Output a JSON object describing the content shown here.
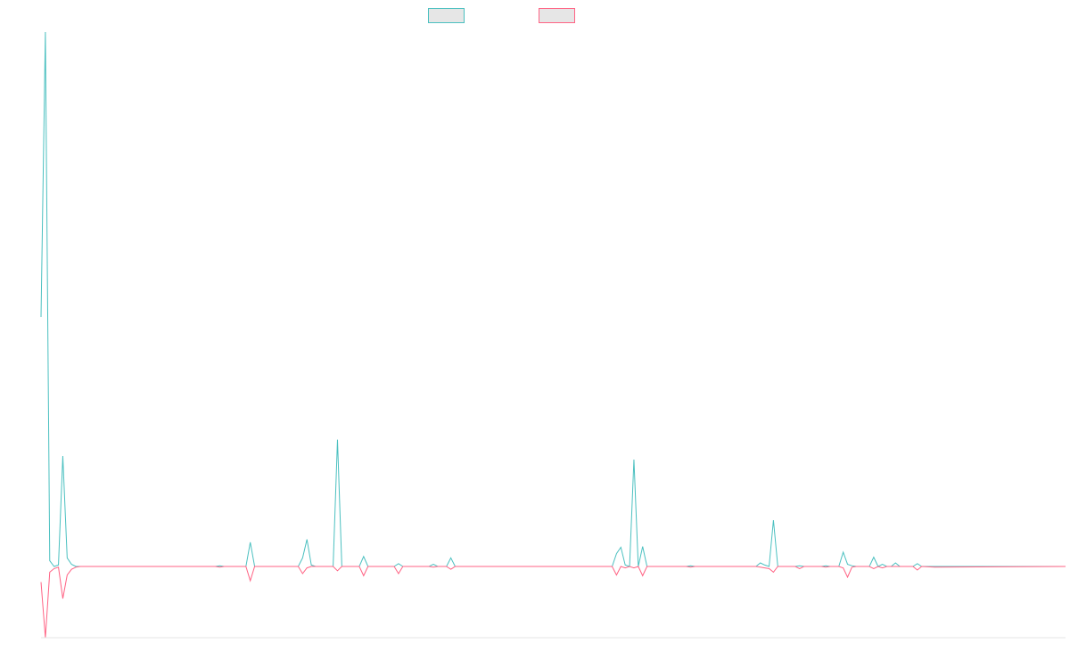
{
  "chart_data": {
    "type": "line",
    "title": "",
    "xlabel": "",
    "ylabel": "",
    "ylim": [
      -100,
      750
    ],
    "grid": false,
    "legend": "top-center",
    "series": [
      {
        "color": "#4bc0c0",
        "fill": "#e6e6e6",
        "points": [
          [
            0,
            350
          ],
          [
            1,
            750
          ],
          [
            2,
            8
          ],
          [
            3,
            0
          ],
          [
            4,
            2
          ],
          [
            5,
            155
          ],
          [
            6,
            12
          ],
          [
            7,
            3
          ],
          [
            8,
            0
          ],
          [
            9,
            0
          ],
          [
            40,
            0
          ],
          [
            41,
            1
          ],
          [
            42,
            0
          ],
          [
            47,
            0
          ],
          [
            48,
            34
          ],
          [
            49,
            0
          ],
          [
            59,
            0
          ],
          [
            60,
            12
          ],
          [
            61,
            38
          ],
          [
            62,
            2
          ],
          [
            63,
            0
          ],
          [
            67,
            0
          ],
          [
            68,
            178
          ],
          [
            69,
            0
          ],
          [
            73,
            0
          ],
          [
            74,
            14
          ],
          [
            75,
            0
          ],
          [
            81,
            0
          ],
          [
            82,
            4
          ],
          [
            83,
            0
          ],
          [
            89,
            0
          ],
          [
            90,
            3
          ],
          [
            91,
            0
          ],
          [
            93,
            0
          ],
          [
            94,
            12
          ],
          [
            95,
            0
          ],
          [
            131,
            0
          ],
          [
            132,
            18
          ],
          [
            133,
            27
          ],
          [
            134,
            2
          ],
          [
            135,
            0
          ],
          [
            136,
            150
          ],
          [
            137,
            0
          ],
          [
            138,
            28
          ],
          [
            139,
            0
          ],
          [
            148,
            0
          ],
          [
            149,
            1
          ],
          [
            150,
            0
          ],
          [
            164,
            0
          ],
          [
            165,
            5
          ],
          [
            166,
            2
          ],
          [
            167,
            0
          ],
          [
            168,
            65
          ],
          [
            169,
            0
          ],
          [
            173,
            0
          ],
          [
            174,
            1
          ],
          [
            175,
            0
          ],
          [
            179,
            0
          ],
          [
            180,
            1
          ],
          [
            181,
            0
          ],
          [
            183,
            0
          ],
          [
            184,
            20
          ],
          [
            185,
            3
          ],
          [
            186,
            1
          ],
          [
            187,
            0
          ],
          [
            190,
            0
          ],
          [
            191,
            13
          ],
          [
            192,
            0
          ],
          [
            193,
            3
          ],
          [
            194,
            0
          ],
          [
            195,
            0
          ],
          [
            196,
            5
          ],
          [
            197,
            0
          ],
          [
            200,
            0
          ],
          [
            201,
            4
          ],
          [
            202,
            0
          ],
          [
            205,
            0
          ],
          [
            235,
            0
          ]
        ]
      },
      {
        "color": "#ff6384",
        "fill": "#e6e6e6",
        "points": [
          [
            0,
            -22
          ],
          [
            1,
            -100
          ],
          [
            2,
            -8
          ],
          [
            3,
            -3
          ],
          [
            4,
            -1
          ],
          [
            5,
            -45
          ],
          [
            6,
            -12
          ],
          [
            7,
            -4
          ],
          [
            8,
            -1
          ],
          [
            9,
            0
          ],
          [
            40,
            0
          ],
          [
            41,
            -1
          ],
          [
            42,
            0
          ],
          [
            47,
            0
          ],
          [
            48,
            -20
          ],
          [
            49,
            0
          ],
          [
            59,
            0
          ],
          [
            60,
            -10
          ],
          [
            61,
            -2
          ],
          [
            62,
            0
          ],
          [
            63,
            0
          ],
          [
            67,
            0
          ],
          [
            68,
            -6
          ],
          [
            69,
            0
          ],
          [
            73,
            0
          ],
          [
            74,
            -13
          ],
          [
            75,
            0
          ],
          [
            81,
            0
          ],
          [
            82,
            -10
          ],
          [
            83,
            0
          ],
          [
            89,
            0
          ],
          [
            90,
            -1
          ],
          [
            91,
            0
          ],
          [
            93,
            0
          ],
          [
            94,
            -4
          ],
          [
            95,
            0
          ],
          [
            131,
            0
          ],
          [
            132,
            -12
          ],
          [
            133,
            0
          ],
          [
            134,
            -2
          ],
          [
            135,
            0
          ],
          [
            136,
            -2
          ],
          [
            137,
            0
          ],
          [
            138,
            -13
          ],
          [
            139,
            0
          ],
          [
            148,
            0
          ],
          [
            149,
            -1
          ],
          [
            150,
            0
          ],
          [
            164,
            0
          ],
          [
            165,
            -1
          ],
          [
            166,
            -2
          ],
          [
            167,
            -3
          ],
          [
            168,
            -8
          ],
          [
            169,
            0
          ],
          [
            173,
            0
          ],
          [
            174,
            -3
          ],
          [
            175,
            0
          ],
          [
            179,
            0
          ],
          [
            180,
            -1
          ],
          [
            181,
            0
          ],
          [
            183,
            0
          ],
          [
            184,
            -2
          ],
          [
            185,
            -15
          ],
          [
            186,
            -1
          ],
          [
            187,
            0
          ],
          [
            190,
            0
          ],
          [
            191,
            -3
          ],
          [
            192,
            0
          ],
          [
            193,
            -2
          ],
          [
            194,
            0
          ],
          [
            195,
            0
          ],
          [
            196,
            0
          ],
          [
            197,
            0
          ],
          [
            200,
            0
          ],
          [
            201,
            -5
          ],
          [
            202,
            0
          ],
          [
            205,
            -1
          ],
          [
            235,
            0
          ]
        ]
      }
    ],
    "xlim": [
      0,
      235
    ]
  }
}
